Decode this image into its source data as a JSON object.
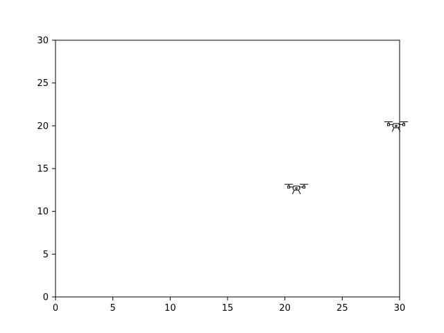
{
  "chart_data": {
    "type": "scatter",
    "title": "",
    "xlabel": "",
    "ylabel": "",
    "xlim": [
      0,
      30
    ],
    "ylim": [
      0,
      30
    ],
    "x_ticks": [
      0,
      5,
      10,
      15,
      20,
      25,
      30
    ],
    "y_ticks": [
      0,
      5,
      10,
      15,
      20,
      25,
      30
    ],
    "grid": false,
    "marker_icon": "drone-icon",
    "series": [
      {
        "points": [
          {
            "x": 21.0,
            "y": 12.8
          },
          {
            "x": 29.7,
            "y": 20.1
          }
        ]
      }
    ]
  }
}
